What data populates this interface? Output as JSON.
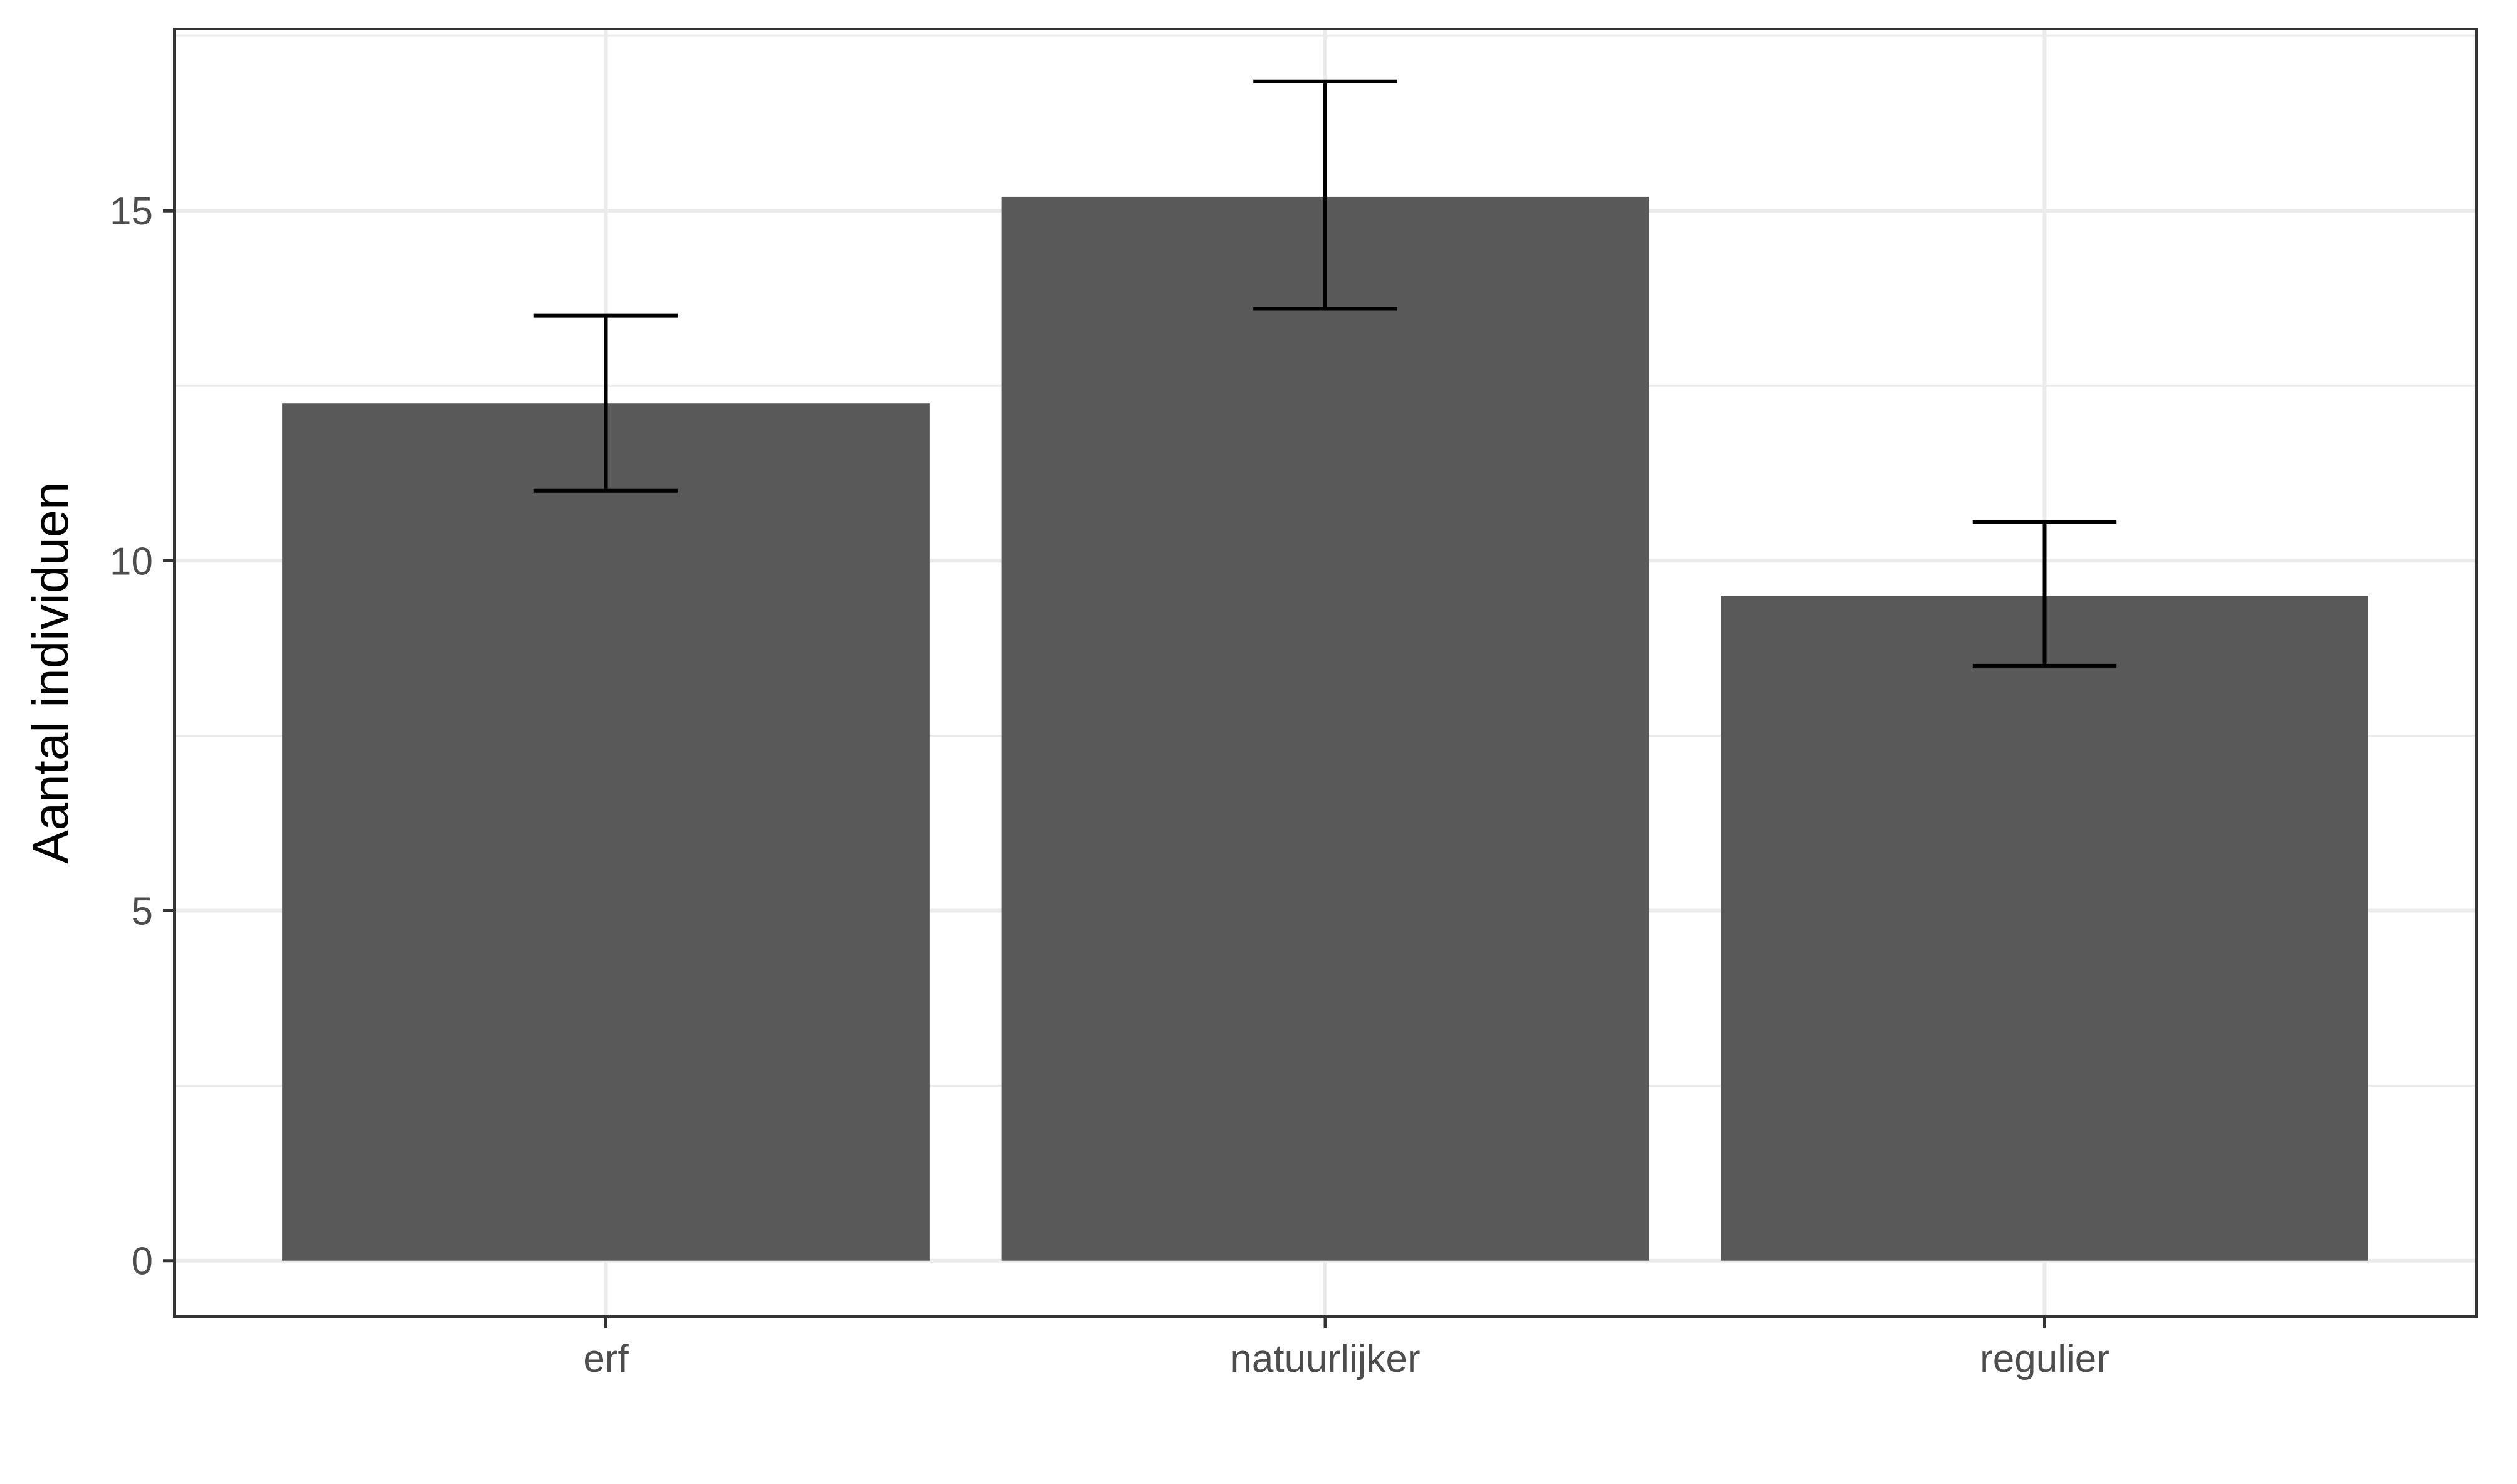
{
  "chart_data": {
    "type": "bar",
    "title": "",
    "xlabel": "",
    "ylabel": "Aantal individuen",
    "categories": [
      "erf",
      "natuurlijker",
      "regulier"
    ],
    "values": [
      12.25,
      15.2,
      9.5
    ],
    "error_bars": [
      {
        "low": 11.0,
        "high": 13.5
      },
      {
        "low": 13.6,
        "high": 16.85
      },
      {
        "low": 8.5,
        "high": 10.55
      }
    ],
    "ylim": [
      -0.8,
      17.6
    ],
    "yticks": [
      0,
      5,
      10,
      15
    ],
    "ytick_labels": [
      "0",
      "5",
      "10",
      "15"
    ],
    "grid": true,
    "legend": "none",
    "colors": {
      "bar": "#595959",
      "error_bar": "#000000",
      "grid": "#ebebeb",
      "panel_border": "#333333",
      "background": "#ffffff",
      "tick_label": "#4d4d4d",
      "axis_title": "#000000"
    }
  }
}
